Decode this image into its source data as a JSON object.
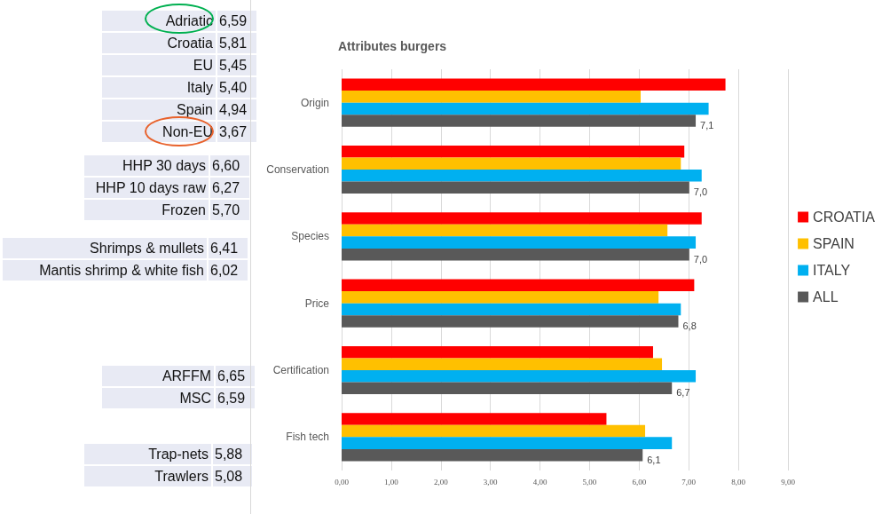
{
  "chart_data": [
    {
      "type": "other",
      "categories": [
        "Adriatic",
        "Croatia",
        "EU",
        "Italy",
        "Spain",
        "Non-EU"
      ],
      "value_labels": [
        "6,59",
        "5,81",
        "5,45",
        "5,40",
        "4,94",
        "3,67"
      ]
    },
    {
      "type": "other",
      "categories": [
        "HHP 30 days",
        "HHP 10 days raw",
        "Frozen"
      ],
      "value_labels": [
        "6,60",
        "6,27",
        "5,70"
      ]
    },
    {
      "type": "other",
      "categories": [
        "Shrimps & mullets",
        "Mantis shrimp & white fish"
      ],
      "value_labels": [
        "6,41",
        "6,02"
      ]
    },
    {
      "type": "other",
      "categories": [
        "ARFFM",
        "MSC"
      ],
      "value_labels": [
        "6,65",
        "6,59"
      ]
    },
    {
      "type": "other",
      "categories": [
        "Trap-nets",
        "Trawlers"
      ],
      "value_labels": [
        "5,88",
        "5,08"
      ]
    },
    {
      "type": "bar",
      "orientation": "horizontal",
      "title": "Attributes burgers",
      "categories": [
        "Origin",
        "Conservation",
        "Species",
        "Price",
        "Certification",
        "Fish tech"
      ],
      "series": [
        {
          "name": "CROATIA",
          "color": "#ff0000",
          "values": [
            7.74,
            6.91,
            7.26,
            7.11,
            6.28,
            5.34
          ]
        },
        {
          "name": "SPAIN",
          "color": "#ffc000",
          "values": [
            6.03,
            6.84,
            6.57,
            6.39,
            6.46,
            6.12
          ]
        },
        {
          "name": "ITALY",
          "color": "#00b0f0",
          "values": [
            7.4,
            7.26,
            7.14,
            6.84,
            7.14,
            6.66
          ]
        },
        {
          "name": "ALL",
          "color": "#595959",
          "values": [
            7.14,
            7.01,
            7.01,
            6.79,
            6.66,
            6.07
          ],
          "value_labels": [
            "7,1",
            "7,0",
            "7,0",
            "6,8",
            "6,7",
            "6,1"
          ]
        }
      ],
      "xlim": [
        0,
        9
      ],
      "xticks": [
        {
          "value": 0,
          "label": "0,00"
        },
        {
          "value": 1,
          "label": "1,00"
        },
        {
          "value": 2,
          "label": "2,00"
        },
        {
          "value": 3,
          "label": "3,00"
        },
        {
          "value": 4,
          "label": "4,00"
        },
        {
          "value": 5,
          "label": "5,00"
        },
        {
          "value": 6,
          "label": "6,00"
        },
        {
          "value": 7,
          "label": "7,00"
        },
        {
          "value": 8,
          "label": "8,00"
        },
        {
          "value": 9,
          "label": "9,00"
        }
      ],
      "grid": "x",
      "legend": "right"
    }
  ]
}
